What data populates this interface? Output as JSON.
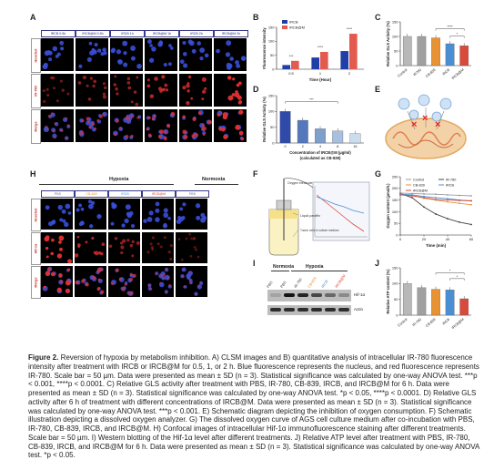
{
  "panels": {
    "A": "A",
    "B": "B",
    "C": "C",
    "D": "D",
    "E": "E",
    "F": "F",
    "G": "G",
    "H": "H",
    "I": "I",
    "J": "J"
  },
  "panel_a": {
    "columns": [
      "IRCB 0.5h",
      "IRCB@M 0.5h",
      "IRCB 1h",
      "IRCB@M 1h",
      "IRCB 2h",
      "IRCB@M 2h"
    ],
    "rows": [
      "Hoechst",
      "IR-780",
      "Merge"
    ]
  },
  "panel_h": {
    "group_hypoxia": "Hypoxia",
    "group_normoxia": "Normoxia",
    "columns": [
      "PBS",
      "CB-839",
      "IRCB",
      "IRCB@M",
      "PBS"
    ],
    "column_colors": [
      "#6b6b9a",
      "#e89234",
      "#4a8fd4",
      "#d84a3a",
      "#6b6b9a"
    ],
    "rows": [
      "Hoechst",
      "Hif-1α",
      "Merge"
    ]
  },
  "panel_e_marks": [
    "×",
    "×",
    "×"
  ],
  "panel_f": {
    "labels": [
      "Oxygen electrode",
      "Liquid paraffin",
      "Tumor cells in culture medium"
    ]
  },
  "panel_i": {
    "group_normoxia": "Normoxia",
    "group_hypoxia": "Hypoxia",
    "lanes": [
      "PBS",
      "PBS",
      "IR-780",
      "CB-839",
      "IRCB",
      "IRCB@M"
    ],
    "lane_colors": [
      "#444",
      "#444",
      "#444",
      "#e89234",
      "#4a8fd4",
      "#d84a3a"
    ],
    "bands": [
      "Hif-1α",
      "Actin"
    ]
  },
  "chart_data": [
    {
      "panel": "B",
      "type": "bar",
      "ylabel": "Fluorescence intensity",
      "xlabel": "Time (Hour)",
      "categories": [
        "0.5",
        "1",
        "2"
      ],
      "ylim": [
        0,
        150
      ],
      "yticks": [
        "0",
        "50",
        "100",
        "150"
      ],
      "series": [
        {
          "name": "IRCB",
          "color": "#1f3ea8",
          "values": [
            15,
            42,
            65
          ]
        },
        {
          "name": "IRCB@M",
          "color": "#e35a4f",
          "values": [
            30,
            62,
            127
          ]
        }
      ],
      "significance": [
        "***",
        "****",
        "****"
      ]
    },
    {
      "panel": "C",
      "type": "bar",
      "ylabel": "Relative GLS Activity (%)",
      "categories": [
        "Control",
        "IR780",
        "CB-839",
        "IRCB",
        "IRCB@M"
      ],
      "ylim": [
        0,
        150
      ],
      "yticks": [
        "0",
        "50",
        "100",
        "150"
      ],
      "values": [
        100,
        100,
        95,
        75,
        68
      ],
      "colors": [
        "#b8b8b8",
        "#a0a0a0",
        "#e89234",
        "#4a8fd4",
        "#d84a3a"
      ],
      "significance": [
        "****",
        "*"
      ]
    },
    {
      "panel": "D",
      "type": "bar",
      "ylabel": "Relative GLS Activity (%)",
      "xlabel": "Concentration of IRCB@M (µg/ml) (calculated as CB-839)",
      "categories": [
        "0",
        "2",
        "4",
        "8",
        "16"
      ],
      "ylim": [
        0,
        150
      ],
      "yticks": [
        "0",
        "50",
        "100",
        "150"
      ],
      "values": [
        100,
        72,
        45,
        38,
        30
      ],
      "colors": [
        "#2f4aa8",
        "#5577bb",
        "#7f9fcc",
        "#a6c0dd",
        "#cbdcee"
      ],
      "significance": [
        "***"
      ]
    },
    {
      "panel": "G",
      "type": "line",
      "ylabel": "Oxygen content (µmol/L)",
      "xlabel": "Time (min)",
      "x": [
        0,
        10,
        20,
        30,
        40,
        50,
        60
      ],
      "ylim": [
        0,
        250
      ],
      "yticks": [
        "0",
        "50",
        "100",
        "150",
        "200",
        "250"
      ],
      "xticks": [
        "0",
        "20",
        "40",
        "60"
      ],
      "series": [
        {
          "name": "Control",
          "color": "#9a9a9a",
          "values": [
            180,
            178,
            176,
            175,
            172,
            170,
            168
          ]
        },
        {
          "name": "IR-780",
          "color": "#444444",
          "values": [
            178,
            160,
            120,
            90,
            70,
            55,
            45
          ]
        },
        {
          "name": "CB-839",
          "color": "#e89234",
          "values": [
            176,
            170,
            158,
            150,
            142,
            136,
            130
          ]
        },
        {
          "name": "IRCB",
          "color": "#4a8fd4",
          "values": [
            175,
            172,
            165,
            160,
            156,
            150,
            146
          ]
        },
        {
          "name": "IRCB@M",
          "color": "#d84a3a",
          "values": [
            172,
            168,
            160,
            152,
            150,
            148,
            147
          ]
        }
      ]
    },
    {
      "panel": "J",
      "type": "bar",
      "ylabel": "Relative ATP content (%)",
      "categories": [
        "Control",
        "IR-780",
        "CB-839",
        "IRCB",
        "IRCB@M"
      ],
      "ylim": [
        0,
        150
      ],
      "yticks": [
        "0",
        "50",
        "100",
        "150"
      ],
      "values": [
        100,
        87,
        82,
        80,
        52
      ],
      "colors": [
        "#b8b8b8",
        "#a0a0a0",
        "#e89234",
        "#4a8fd4",
        "#d84a3a"
      ],
      "significance": [
        "*",
        "*"
      ]
    }
  ],
  "caption": {
    "bold": "Figure 2.",
    "text": " Reversion of hypoxia by metabolism inhibition. A) CLSM images and B) quantitative analysis of intracellular IR-780 fluorescence intensity after treatment with IRCB or IRCB@M for 0.5, 1, or 2 h. Blue fluorescence represents the nucleus, and red fluorescence represents IR-780. Scale bar = 50 µm. Data were presented as mean ± SD (n = 3). Statistical significance was calculated by one-way ANOVA test. ***p < 0.001, ****p < 0.0001. C) Relative GLS activity after treatment with PBS, IR-780, CB-839, IRCB, and IRCB@M for 6 h. Data were presented as mean ± SD (n = 3). Statistical significance was calculated by one-way ANOVA test. *p < 0.05, ****p < 0.0001. D) Relative GLS activity after 6 h of treatment with different concentrations of IRCB@M. Data were presented as mean ± SD (n = 3). Statistical significance was calculated by one-way ANOVA test. ***p < 0.001. E) Schematic diagram depicting the inhibition of oxygen consumption. F) Schematic illustration depicting a dissolved oxygen analyzer. G) The dissolved oxygen curve of AGS cell culture medium after co-incubation with PBS, IR-780, CB-839, IRCB, and IRCB@M. H) Confocal images of intracellular Hif-1α immunofluorescence staining after different treatments. Scale bar = 50 µm. I) Western blotting of the Hif-1α level after different treatments. J) Relative ATP level after treatment with PBS, IR-780, CB-839, IRCB, and IRCB@M for 6 h. Data were presented as mean ± SD (n = 3). Statistical significance was calculated by one-way ANOVA test. *p < 0.05."
  }
}
